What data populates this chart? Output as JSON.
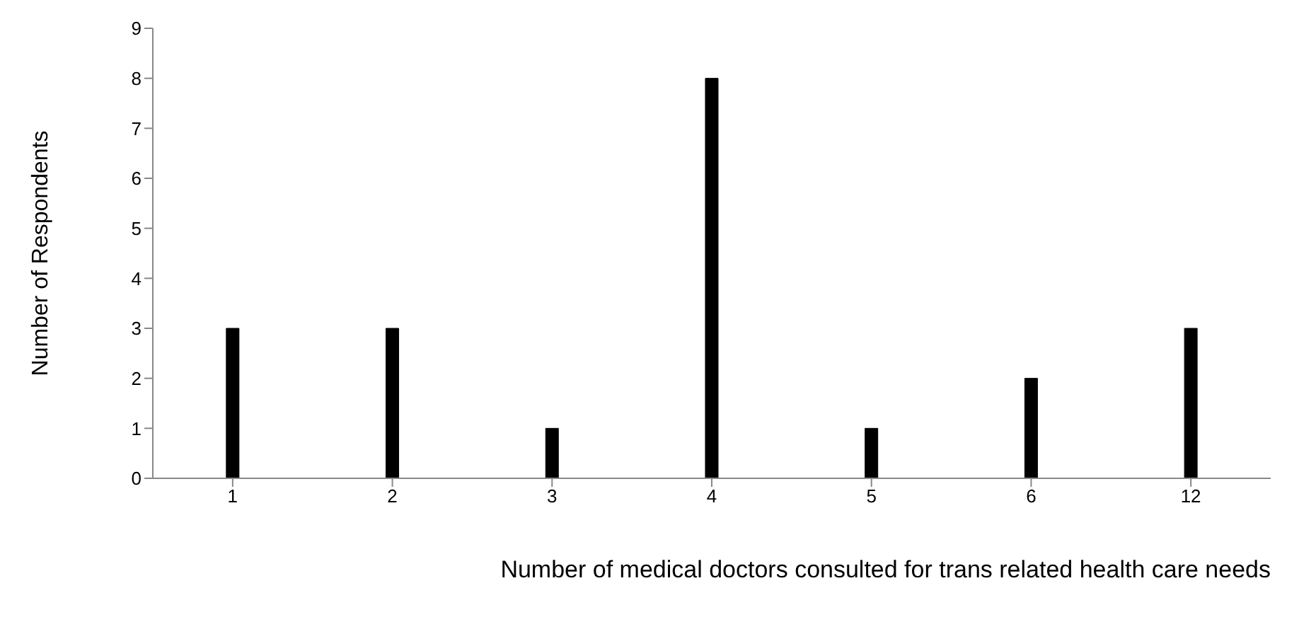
{
  "chart_data": {
    "type": "bar",
    "xlabel": "Number of medical doctors consulted for trans related health care needs",
    "ylabel": "Number of Respondents",
    "categories": [
      "1",
      "2",
      "3",
      "4",
      "5",
      "6",
      "12"
    ],
    "series": [
      {
        "color": "#000000",
        "values": [
          3,
          3,
          1,
          8,
          1,
          2,
          3
        ]
      }
    ],
    "ylim": [
      0,
      9
    ],
    "yticks": [
      0,
      1,
      2,
      3,
      4,
      5,
      6,
      7,
      8,
      9
    ],
    "grid": false,
    "legend": false
  }
}
